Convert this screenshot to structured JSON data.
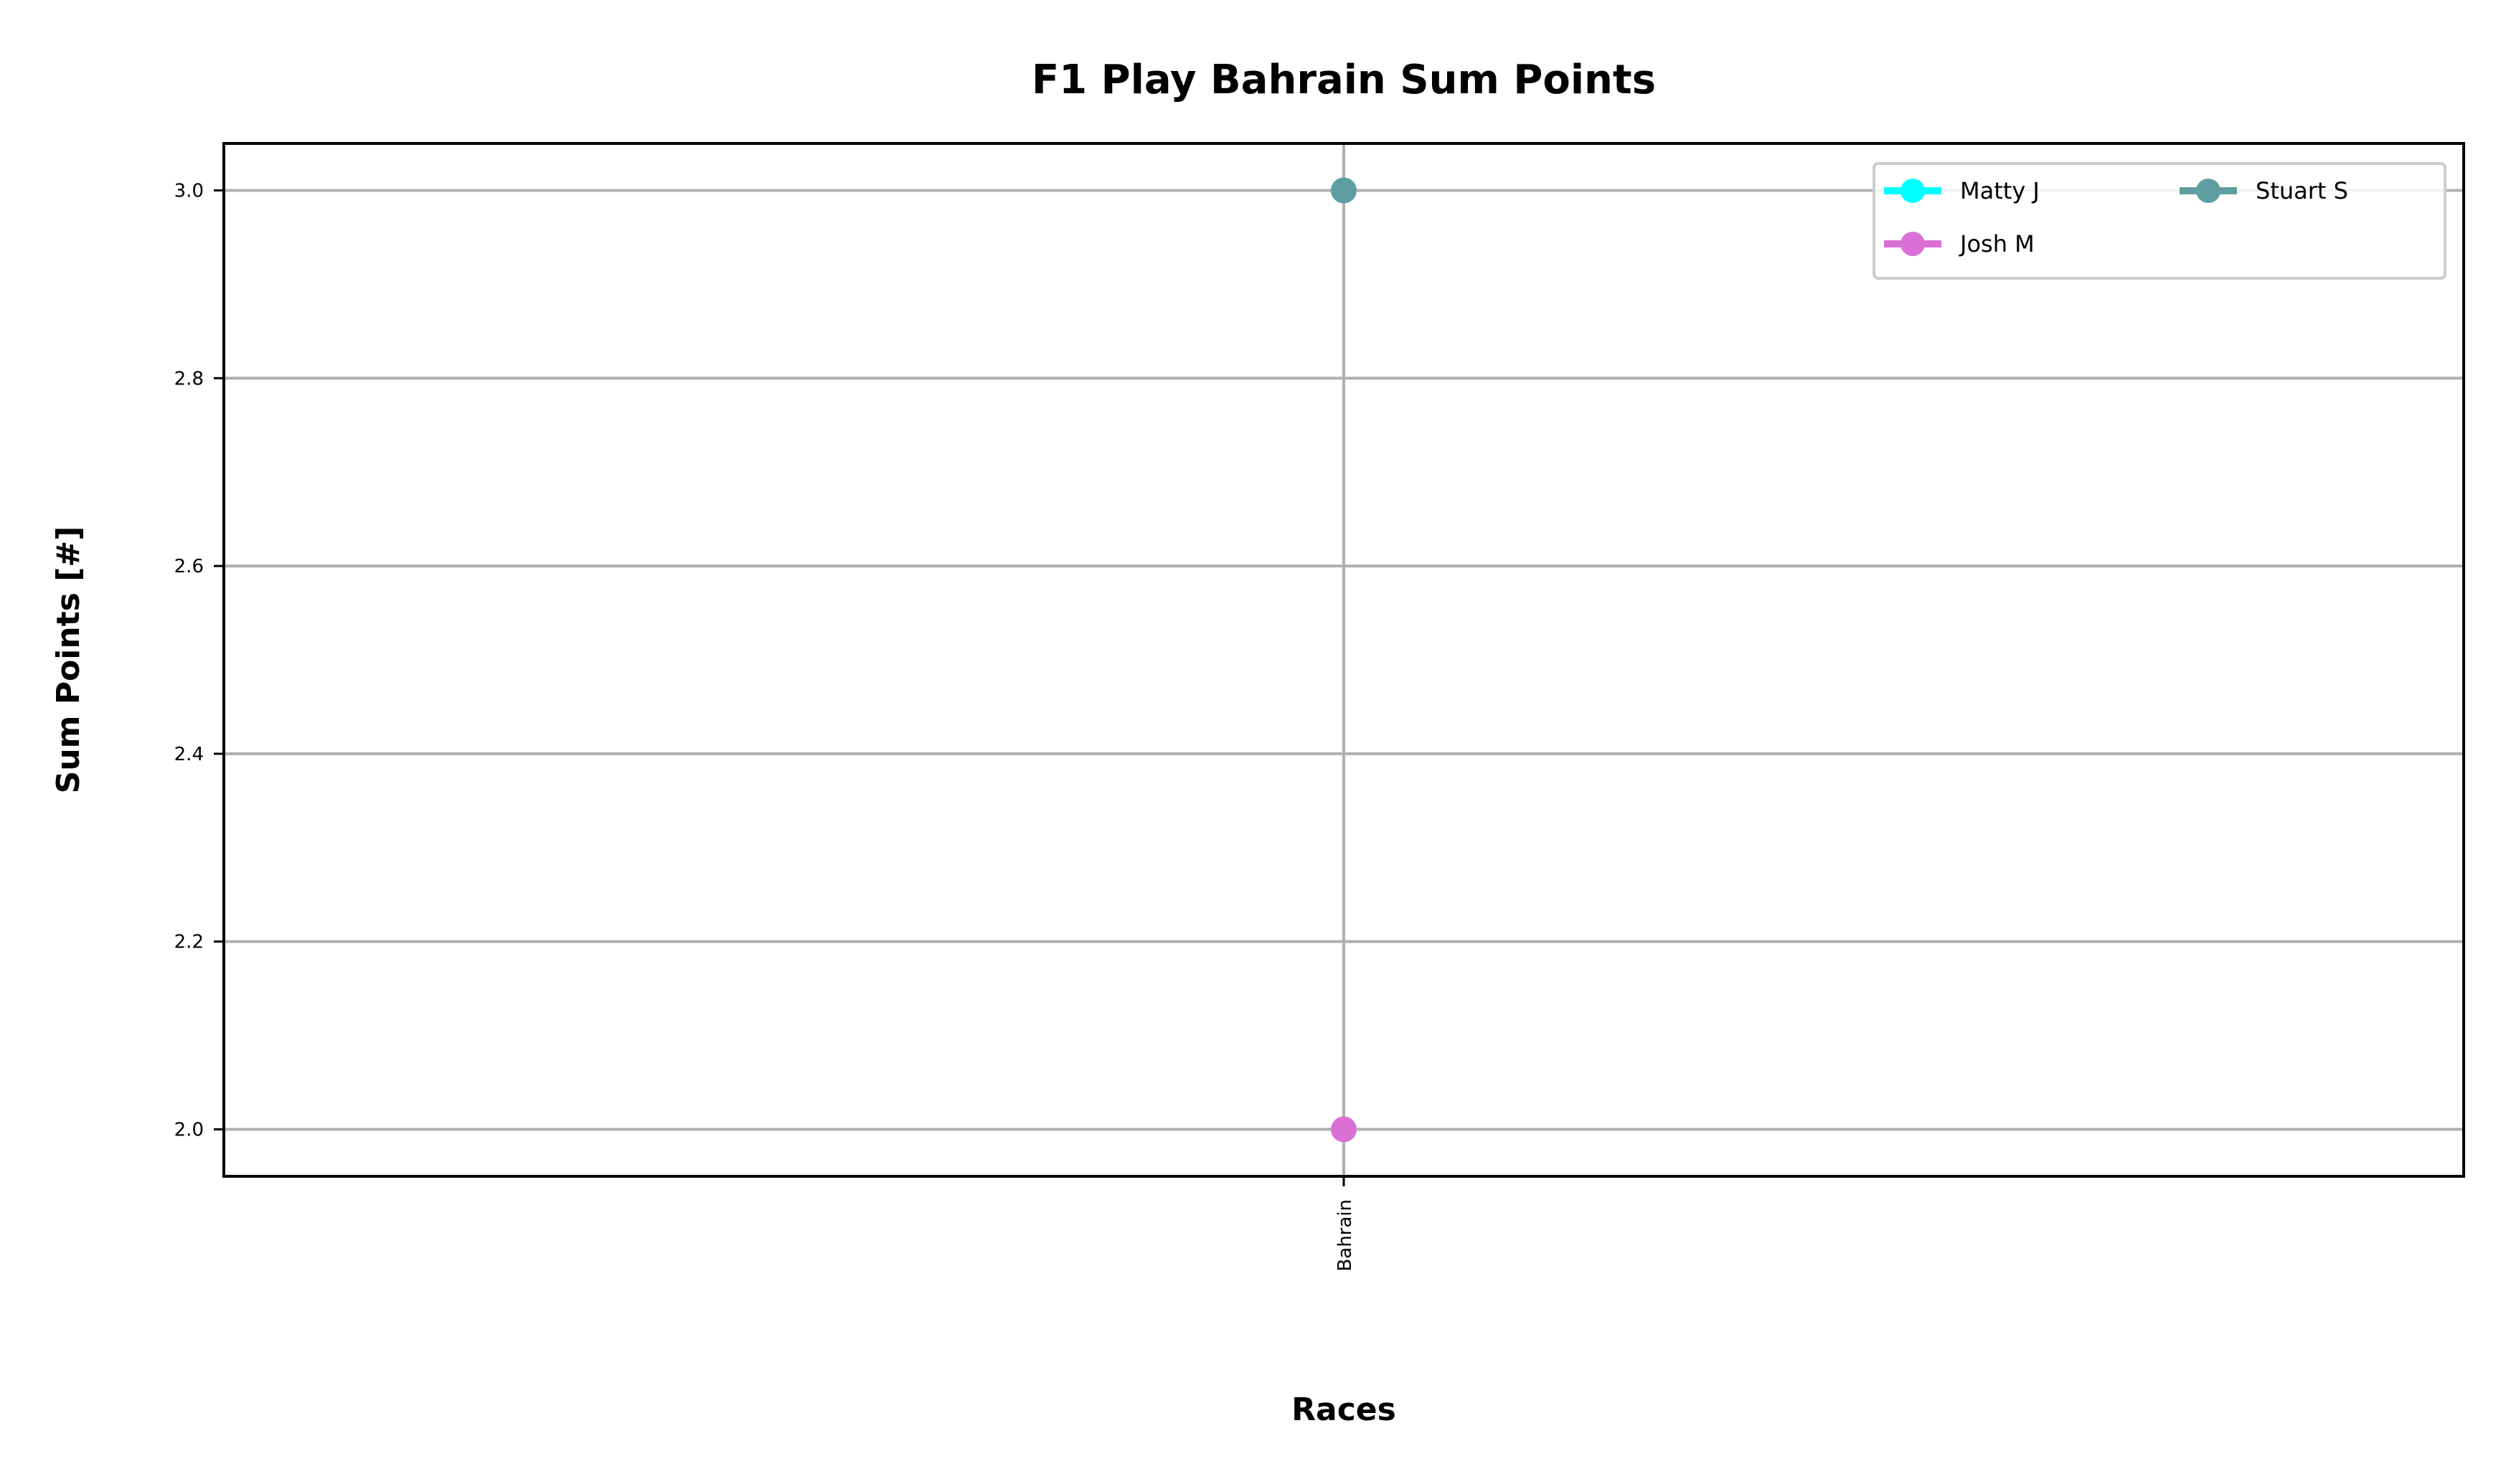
{
  "chart_data": {
    "type": "line",
    "title": "F1 Play Bahrain Sum Points",
    "xlabel": "Races",
    "ylabel": "Sum Points [#]",
    "categories": [
      "Bahrain"
    ],
    "ylim": [
      1.95,
      3.05
    ],
    "yticks": [
      "2.0",
      "2.2",
      "2.4",
      "2.6",
      "2.8",
      "3.0"
    ],
    "grid": true,
    "legend_position": "top-right",
    "series": [
      {
        "name": "Matty J",
        "color": "#00ffff",
        "values": [
          3
        ]
      },
      {
        "name": "Josh M",
        "color": "#da70d6",
        "values": [
          2
        ]
      },
      {
        "name": "Stuart S",
        "color": "#5f9ea0",
        "values": [
          3
        ]
      }
    ]
  }
}
